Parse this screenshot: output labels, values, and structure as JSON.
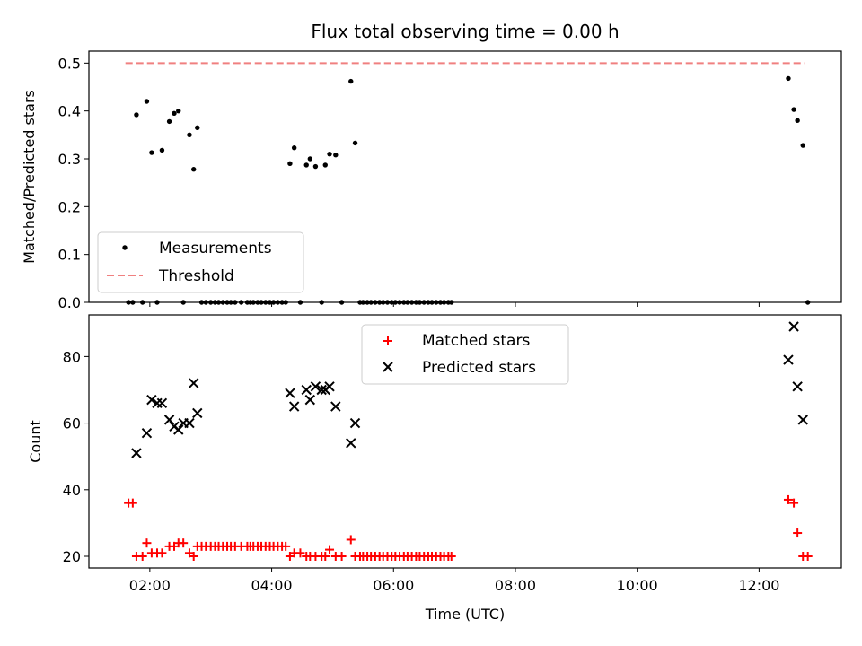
{
  "chart_data": [
    {
      "type": "scatter",
      "title": "Flux total observing time = 0.00 h",
      "xlabel": "",
      "ylabel": "Matched/Predicted stars",
      "ylim": [
        0.0,
        0.525
      ],
      "xlim": [
        1.0,
        13.35
      ],
      "yticks": [
        "0.0",
        "0.1",
        "0.2",
        "0.3",
        "0.4",
        "0.5"
      ],
      "legend": {
        "placement": "lower-left",
        "entries": [
          "Measurements",
          "Threshold"
        ]
      },
      "threshold": {
        "name": "Threshold",
        "value": 0.5,
        "x_range": [
          1.6,
          12.75
        ],
        "color": "#f08080"
      },
      "series": [
        {
          "name": "Measurements",
          "color": "#000000",
          "marker": "dot",
          "x": [
            1.65,
            1.72,
            1.78,
            1.88,
            1.95,
            2.03,
            2.12,
            2.2,
            2.32,
            2.4,
            2.47,
            2.55,
            2.65,
            2.72,
            2.78,
            2.85,
            2.92,
            3.0,
            3.07,
            3.13,
            3.2,
            3.27,
            3.33,
            3.4,
            3.5,
            3.6,
            3.65,
            3.7,
            3.77,
            3.83,
            3.9,
            3.97,
            4.03,
            4.1,
            4.17,
            4.23,
            4.3,
            4.37,
            4.47,
            4.57,
            4.63,
            4.72,
            4.82,
            4.88,
            4.95,
            5.05,
            5.15,
            5.3,
            5.37,
            5.45,
            5.5,
            5.57,
            5.63,
            5.7,
            5.77,
            5.83,
            5.9,
            5.97,
            6.03,
            6.1,
            6.17,
            6.23,
            6.3,
            6.37,
            6.43,
            6.5,
            6.57,
            6.63,
            6.7,
            6.77,
            6.83,
            6.9,
            6.95,
            12.48,
            12.57,
            12.63,
            12.72,
            12.8
          ],
          "y": [
            0.0,
            0.0,
            0.392,
            0.0,
            0.42,
            0.313,
            0.0,
            0.318,
            0.378,
            0.395,
            0.4,
            0.0,
            0.35,
            0.278,
            0.365,
            0.0,
            0.0,
            0.0,
            0.0,
            0.0,
            0.0,
            0.0,
            0.0,
            0.0,
            0.0,
            0.0,
            0.0,
            0.0,
            0.0,
            0.0,
            0.0,
            0.0,
            0.0,
            0.0,
            0.0,
            0.0,
            0.29,
            0.323,
            0.0,
            0.287,
            0.3,
            0.284,
            0.0,
            0.287,
            0.31,
            0.308,
            0.0,
            0.462,
            0.333,
            0.0,
            0.0,
            0.0,
            0.0,
            0.0,
            0.0,
            0.0,
            0.0,
            0.0,
            0.0,
            0.0,
            0.0,
            0.0,
            0.0,
            0.0,
            0.0,
            0.0,
            0.0,
            0.0,
            0.0,
            0.0,
            0.0,
            0.0,
            0.0,
            0.468,
            0.403,
            0.38,
            0.328,
            0.0
          ]
        }
      ]
    },
    {
      "type": "scatter",
      "title": "",
      "xlabel": "Time (UTC)",
      "ylabel": "Count",
      "ylim": [
        16.5,
        92.5
      ],
      "xlim": [
        1.0,
        13.35
      ],
      "xticks": [
        {
          "value": 2,
          "label": "02:00"
        },
        {
          "value": 4,
          "label": "04:00"
        },
        {
          "value": 6,
          "label": "06:00"
        },
        {
          "value": 8,
          "label": "08:00"
        },
        {
          "value": 10,
          "label": "10:00"
        },
        {
          "value": 12,
          "label": "12:00"
        }
      ],
      "yticks": [
        "20",
        "40",
        "60",
        "80"
      ],
      "legend": {
        "placement": "upper-center",
        "entries": [
          "Matched stars",
          "Predicted stars"
        ]
      },
      "series": [
        {
          "name": "Matched stars",
          "color": "#ff0000",
          "marker": "plus",
          "x": [
            1.65,
            1.72,
            1.78,
            1.88,
            1.95,
            2.03,
            2.12,
            2.2,
            2.32,
            2.4,
            2.47,
            2.55,
            2.65,
            2.72,
            2.78,
            2.85,
            2.92,
            3.0,
            3.07,
            3.13,
            3.2,
            3.27,
            3.33,
            3.4,
            3.5,
            3.6,
            3.65,
            3.7,
            3.77,
            3.83,
            3.9,
            3.97,
            4.03,
            4.1,
            4.17,
            4.23,
            4.3,
            4.37,
            4.47,
            4.57,
            4.63,
            4.72,
            4.82,
            4.88,
            4.95,
            5.05,
            5.15,
            5.3,
            5.37,
            5.45,
            5.5,
            5.57,
            5.63,
            5.7,
            5.77,
            5.83,
            5.9,
            5.97,
            6.03,
            6.1,
            6.17,
            6.23,
            6.3,
            6.37,
            6.43,
            6.5,
            6.57,
            6.63,
            6.7,
            6.77,
            6.83,
            6.9,
            6.95,
            12.48,
            12.57,
            12.63,
            12.72,
            12.8
          ],
          "y": [
            36,
            36,
            20,
            20,
            24,
            21,
            21,
            21,
            23,
            23,
            24,
            24,
            21,
            20,
            23,
            23,
            23,
            23,
            23,
            23,
            23,
            23,
            23,
            23,
            23,
            23,
            23,
            23,
            23,
            23,
            23,
            23,
            23,
            23,
            23,
            23,
            20,
            21,
            21,
            20,
            20,
            20,
            20,
            20,
            22,
            20,
            20,
            25,
            20,
            20,
            20,
            20,
            20,
            20,
            20,
            20,
            20,
            20,
            20,
            20,
            20,
            20,
            20,
            20,
            20,
            20,
            20,
            20,
            20,
            20,
            20,
            20,
            20,
            37,
            36,
            27,
            20,
            20
          ]
        },
        {
          "name": "Predicted stars",
          "color": "#000000",
          "marker": "x",
          "x": [
            1.78,
            1.95,
            2.03,
            2.12,
            2.2,
            2.32,
            2.4,
            2.47,
            2.55,
            2.65,
            2.72,
            2.78,
            4.3,
            4.37,
            4.57,
            4.63,
            4.72,
            4.82,
            4.88,
            4.95,
            5.05,
            5.3,
            5.37,
            12.48,
            12.57,
            12.63,
            12.72
          ],
          "y": [
            51,
            57,
            67,
            66,
            66,
            61,
            59,
            58,
            60,
            60,
            72,
            63,
            69,
            65,
            70,
            67,
            71,
            70,
            70,
            71,
            65,
            54,
            60,
            79,
            89,
            71,
            61
          ]
        }
      ]
    }
  ]
}
